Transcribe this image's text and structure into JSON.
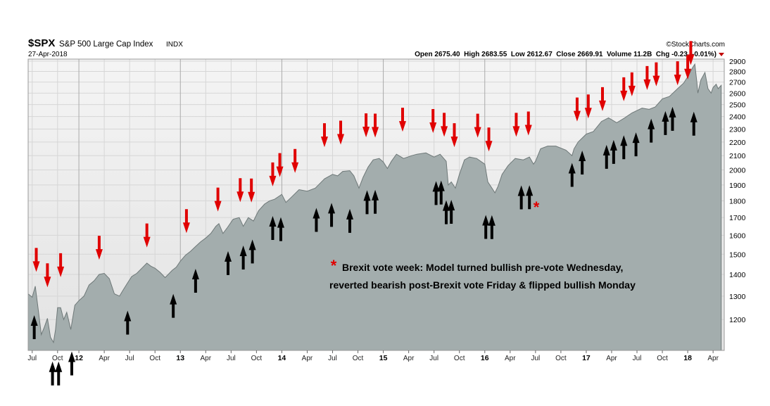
{
  "header": {
    "symbol": "$SPX",
    "name": "S&P 500 Large Cap Index",
    "exchange": "INDX",
    "date": "27-Apr-2018",
    "credit": "©StockCharts.com",
    "stats_text": "Open 2675.40  High 2683.55  Low 2612.67  Close 2669.91  Volume 11.2B  Chg -0.23 (-0.01%)"
  },
  "annotation": {
    "star": "*",
    "line1": "Brexit vote week: Model turned bullish pre-vote Wednesday,",
    "line2": "reverted bearish post-Brexit vote Friday & flipped bullish Monday"
  },
  "colors": {
    "area_fill": "#a3adad",
    "area_line": "#6e7878",
    "plot_bg_top": "#f4f4f4",
    "plot_bg_bottom": "#e3e3e3",
    "bullish_arrow": "#000000",
    "bearish_arrow": "#e00000",
    "star": "#e00000"
  },
  "chart_data": {
    "type": "area",
    "title": "$SPX S&P 500 Large Cap Index INDX",
    "xlabel": "",
    "ylabel": "",
    "yscale": "log",
    "ylim": [
      1080,
      2920
    ],
    "xlim": [
      2011.5,
      2018.36
    ],
    "y_ticks": [
      1200,
      1300,
      1400,
      1500,
      1600,
      1700,
      1800,
      1900,
      2000,
      2100,
      2200,
      2300,
      2400,
      2500,
      2600,
      2700,
      2800,
      2900
    ],
    "x_ticks": [
      {
        "x": 2011.54,
        "label": "Jul",
        "year": false
      },
      {
        "x": 2011.79,
        "label": "Oct",
        "year": false
      },
      {
        "x": 2012.0,
        "label": "12",
        "year": true
      },
      {
        "x": 2012.25,
        "label": "Apr",
        "year": false
      },
      {
        "x": 2012.5,
        "label": "Jul",
        "year": false
      },
      {
        "x": 2012.75,
        "label": "Oct",
        "year": false
      },
      {
        "x": 2013.0,
        "label": "13",
        "year": true
      },
      {
        "x": 2013.25,
        "label": "Apr",
        "year": false
      },
      {
        "x": 2013.5,
        "label": "Jul",
        "year": false
      },
      {
        "x": 2013.75,
        "label": "Oct",
        "year": false
      },
      {
        "x": 2014.0,
        "label": "14",
        "year": true
      },
      {
        "x": 2014.25,
        "label": "Apr",
        "year": false
      },
      {
        "x": 2014.5,
        "label": "Jul",
        "year": false
      },
      {
        "x": 2014.75,
        "label": "Oct",
        "year": false
      },
      {
        "x": 2015.0,
        "label": "15",
        "year": true
      },
      {
        "x": 2015.25,
        "label": "Apr",
        "year": false
      },
      {
        "x": 2015.5,
        "label": "Jul",
        "year": false
      },
      {
        "x": 2015.75,
        "label": "Oct",
        "year": false
      },
      {
        "x": 2016.0,
        "label": "16",
        "year": true
      },
      {
        "x": 2016.25,
        "label": "Apr",
        "year": false
      },
      {
        "x": 2016.5,
        "label": "Jul",
        "year": false
      },
      {
        "x": 2016.75,
        "label": "Oct",
        "year": false
      },
      {
        "x": 2017.0,
        "label": "17",
        "year": true
      },
      {
        "x": 2017.25,
        "label": "Apr",
        "year": false
      },
      {
        "x": 2017.5,
        "label": "Jul",
        "year": false
      },
      {
        "x": 2017.75,
        "label": "Oct",
        "year": false
      },
      {
        "x": 2018.0,
        "label": "18",
        "year": true
      },
      {
        "x": 2018.25,
        "label": "Apr",
        "year": false
      }
    ],
    "series": [
      {
        "points": [
          [
            2011.5,
            1310
          ],
          [
            2011.54,
            1295
          ],
          [
            2011.57,
            1345
          ],
          [
            2011.6,
            1240
          ],
          [
            2011.63,
            1140
          ],
          [
            2011.66,
            1170
          ],
          [
            2011.69,
            1205
          ],
          [
            2011.72,
            1130
          ],
          [
            2011.75,
            1110
          ],
          [
            2011.77,
            1160
          ],
          [
            2011.79,
            1250
          ],
          [
            2011.82,
            1250
          ],
          [
            2011.85,
            1200
          ],
          [
            2011.88,
            1230
          ],
          [
            2011.92,
            1160
          ],
          [
            2011.96,
            1260
          ],
          [
            2012.0,
            1280
          ],
          [
            2012.05,
            1300
          ],
          [
            2012.1,
            1350
          ],
          [
            2012.15,
            1370
          ],
          [
            2012.2,
            1400
          ],
          [
            2012.25,
            1405
          ],
          [
            2012.3,
            1380
          ],
          [
            2012.35,
            1310
          ],
          [
            2012.4,
            1300
          ],
          [
            2012.44,
            1330
          ],
          [
            2012.48,
            1360
          ],
          [
            2012.52,
            1390
          ],
          [
            2012.57,
            1405
          ],
          [
            2012.62,
            1430
          ],
          [
            2012.67,
            1455
          ],
          [
            2012.71,
            1440
          ],
          [
            2012.75,
            1430
          ],
          [
            2012.8,
            1410
          ],
          [
            2012.85,
            1385
          ],
          [
            2012.88,
            1400
          ],
          [
            2012.92,
            1420
          ],
          [
            2012.96,
            1435
          ],
          [
            2013.0,
            1465
          ],
          [
            2013.05,
            1495
          ],
          [
            2013.1,
            1515
          ],
          [
            2013.15,
            1540
          ],
          [
            2013.2,
            1565
          ],
          [
            2013.25,
            1585
          ],
          [
            2013.3,
            1610
          ],
          [
            2013.35,
            1650
          ],
          [
            2013.38,
            1665
          ],
          [
            2013.42,
            1610
          ],
          [
            2013.46,
            1640
          ],
          [
            2013.52,
            1690
          ],
          [
            2013.58,
            1700
          ],
          [
            2013.62,
            1650
          ],
          [
            2013.67,
            1700
          ],
          [
            2013.72,
            1680
          ],
          [
            2013.77,
            1740
          ],
          [
            2013.83,
            1780
          ],
          [
            2013.88,
            1800
          ],
          [
            2013.93,
            1810
          ],
          [
            2014.0,
            1840
          ],
          [
            2014.04,
            1790
          ],
          [
            2014.09,
            1820
          ],
          [
            2014.17,
            1870
          ],
          [
            2014.25,
            1860
          ],
          [
            2014.33,
            1880
          ],
          [
            2014.42,
            1940
          ],
          [
            2014.5,
            1970
          ],
          [
            2014.55,
            1960
          ],
          [
            2014.6,
            1990
          ],
          [
            2014.67,
            1995
          ],
          [
            2014.71,
            1960
          ],
          [
            2014.76,
            1880
          ],
          [
            2014.8,
            1950
          ],
          [
            2014.85,
            2020
          ],
          [
            2014.9,
            2070
          ],
          [
            2014.96,
            2080
          ],
          [
            2015.0,
            2055
          ],
          [
            2015.04,
            2010
          ],
          [
            2015.08,
            2060
          ],
          [
            2015.13,
            2110
          ],
          [
            2015.2,
            2080
          ],
          [
            2015.28,
            2100
          ],
          [
            2015.33,
            2110
          ],
          [
            2015.42,
            2120
          ],
          [
            2015.5,
            2090
          ],
          [
            2015.56,
            2110
          ],
          [
            2015.62,
            2060
          ],
          [
            2015.64,
            1900
          ],
          [
            2015.67,
            1920
          ],
          [
            2015.71,
            1880
          ],
          [
            2015.75,
            1970
          ],
          [
            2015.8,
            2070
          ],
          [
            2015.85,
            2090
          ],
          [
            2015.92,
            2080
          ],
          [
            2016.0,
            2040
          ],
          [
            2016.03,
            1920
          ],
          [
            2016.07,
            1880
          ],
          [
            2016.1,
            1850
          ],
          [
            2016.13,
            1890
          ],
          [
            2016.17,
            1970
          ],
          [
            2016.23,
            2030
          ],
          [
            2016.3,
            2080
          ],
          [
            2016.38,
            2070
          ],
          [
            2016.44,
            2090
          ],
          [
            2016.48,
            2040
          ],
          [
            2016.5,
            2060
          ],
          [
            2016.55,
            2150
          ],
          [
            2016.62,
            2170
          ],
          [
            2016.7,
            2170
          ],
          [
            2016.8,
            2140
          ],
          [
            2016.86,
            2100
          ],
          [
            2016.88,
            2150
          ],
          [
            2016.92,
            2200
          ],
          [
            2017.0,
            2260
          ],
          [
            2017.07,
            2280
          ],
          [
            2017.15,
            2360
          ],
          [
            2017.22,
            2390
          ],
          [
            2017.3,
            2350
          ],
          [
            2017.38,
            2390
          ],
          [
            2017.45,
            2430
          ],
          [
            2017.55,
            2470
          ],
          [
            2017.62,
            2460
          ],
          [
            2017.68,
            2480
          ],
          [
            2017.75,
            2550
          ],
          [
            2017.82,
            2570
          ],
          [
            2017.9,
            2640
          ],
          [
            2017.96,
            2690
          ],
          [
            2018.0,
            2750
          ],
          [
            2018.05,
            2840
          ],
          [
            2018.07,
            2870
          ],
          [
            2018.09,
            2700
          ],
          [
            2018.1,
            2600
          ],
          [
            2018.13,
            2720
          ],
          [
            2018.17,
            2790
          ],
          [
            2018.2,
            2640
          ],
          [
            2018.23,
            2600
          ],
          [
            2018.25,
            2650
          ],
          [
            2018.28,
            2680
          ],
          [
            2018.3,
            2640
          ],
          [
            2018.33,
            2670
          ]
        ]
      }
    ],
    "bullish_arrows": [
      [
        2011.56,
        1218
      ],
      [
        2011.74,
        1040
      ],
      [
        2011.8,
        1040
      ],
      [
        2011.93,
        1076
      ],
      [
        2012.48,
        1237
      ],
      [
        2012.93,
        1310
      ],
      [
        2013.15,
        1427
      ],
      [
        2013.47,
        1516
      ],
      [
        2013.62,
        1545
      ],
      [
        2013.71,
        1577
      ],
      [
        2013.91,
        1709
      ],
      [
        2013.99,
        1702
      ],
      [
        2014.34,
        1757
      ],
      [
        2014.49,
        1787
      ],
      [
        2014.67,
        1751
      ],
      [
        2014.84,
        1866
      ],
      [
        2014.92,
        1869
      ],
      [
        2015.52,
        1925
      ],
      [
        2015.57,
        1929
      ],
      [
        2015.62,
        1803
      ],
      [
        2015.67,
        1806
      ],
      [
        2016.01,
        1715
      ],
      [
        2016.07,
        1714
      ],
      [
        2016.36,
        1897
      ],
      [
        2016.44,
        1898
      ],
      [
        2016.86,
        2049
      ],
      [
        2016.96,
        2137
      ],
      [
        2017.2,
        2179
      ],
      [
        2017.27,
        2216
      ],
      [
        2017.37,
        2251
      ],
      [
        2017.49,
        2274
      ],
      [
        2017.64,
        2383
      ],
      [
        2017.78,
        2445
      ],
      [
        2017.85,
        2481
      ],
      [
        2018.06,
        2440
      ]
    ],
    "bearish_arrows": [
      [
        2011.58,
        1412
      ],
      [
        2011.69,
        1340
      ],
      [
        2011.82,
        1387
      ],
      [
        2012.2,
        1472
      ],
      [
        2012.67,
        1535
      ],
      [
        2013.06,
        1612
      ],
      [
        2013.37,
        1735
      ],
      [
        2013.59,
        1792
      ],
      [
        2013.7,
        1790
      ],
      [
        2013.91,
        1891
      ],
      [
        2013.98,
        1952
      ],
      [
        2014.13,
        1980
      ],
      [
        2014.42,
        2162
      ],
      [
        2014.58,
        2181
      ],
      [
        2014.83,
        2236
      ],
      [
        2014.92,
        2234
      ],
      [
        2015.19,
        2279
      ],
      [
        2015.49,
        2269
      ],
      [
        2015.6,
        2240
      ],
      [
        2015.7,
        2162
      ],
      [
        2015.93,
        2233
      ],
      [
        2016.04,
        2130
      ],
      [
        2016.31,
        2240
      ],
      [
        2016.43,
        2250
      ],
      [
        2016.91,
        2360
      ],
      [
        2017.02,
        2385
      ],
      [
        2017.16,
        2445
      ],
      [
        2017.37,
        2529
      ],
      [
        2017.45,
        2572
      ],
      [
        2017.6,
        2628
      ],
      [
        2017.69,
        2661
      ],
      [
        2017.9,
        2671
      ],
      [
        2018.0,
        2725
      ],
      [
        2018.03,
        2862
      ]
    ],
    "star_marker": [
      2016.47,
      1780
    ]
  }
}
